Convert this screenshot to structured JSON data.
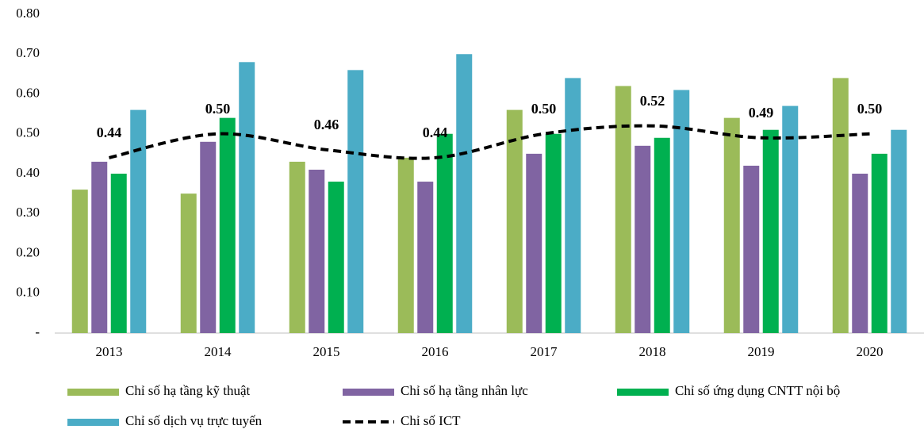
{
  "chart_data": {
    "type": "bar",
    "categories": [
      "2013",
      "2014",
      "2015",
      "2016",
      "2017",
      "2018",
      "2019",
      "2020"
    ],
    "series": [
      {
        "name": "Chỉ số hạ tầng kỹ thuật",
        "color": "#9bbb59",
        "values": [
          0.36,
          0.35,
          0.43,
          0.44,
          0.56,
          0.62,
          0.54,
          0.64
        ]
      },
      {
        "name": "Chỉ số hạ tầng nhân lực",
        "color": "#8064a2",
        "values": [
          0.43,
          0.48,
          0.41,
          0.38,
          0.45,
          0.47,
          0.42,
          0.4
        ]
      },
      {
        "name": "Chỉ số ứng dụng CNTT nội bộ",
        "color": "#00b050",
        "values": [
          0.4,
          0.54,
          0.38,
          0.5,
          0.5,
          0.49,
          0.51,
          0.45
        ]
      },
      {
        "name": "Chỉ số dịch vụ trực tuyến",
        "color": "#4bacc6",
        "values": [
          0.56,
          0.68,
          0.66,
          0.7,
          0.64,
          0.61,
          0.57,
          0.51
        ]
      }
    ],
    "line": {
      "name": "Chỉ số ICT",
      "color": "#000000",
      "style": "dashed",
      "values": [
        0.44,
        0.5,
        0.46,
        0.44,
        0.5,
        0.52,
        0.49,
        0.5
      ],
      "value_labels": [
        "0.44",
        "0.50",
        "0.46",
        "0.44",
        "0.50",
        "0.52",
        "0.49",
        "0.50"
      ]
    },
    "ylim": [
      0,
      0.8
    ],
    "yticks": [
      {
        "value": 0,
        "label": "-"
      },
      {
        "value": 0.1,
        "label": "0.10"
      },
      {
        "value": 0.2,
        "label": "0.20"
      },
      {
        "value": 0.3,
        "label": "0.30"
      },
      {
        "value": 0.4,
        "label": "0.40"
      },
      {
        "value": 0.5,
        "label": "0.50"
      },
      {
        "value": 0.6,
        "label": "0.60"
      },
      {
        "value": 0.7,
        "label": "0.70"
      },
      {
        "value": 0.8,
        "label": "0.80"
      }
    ],
    "grid": false
  }
}
